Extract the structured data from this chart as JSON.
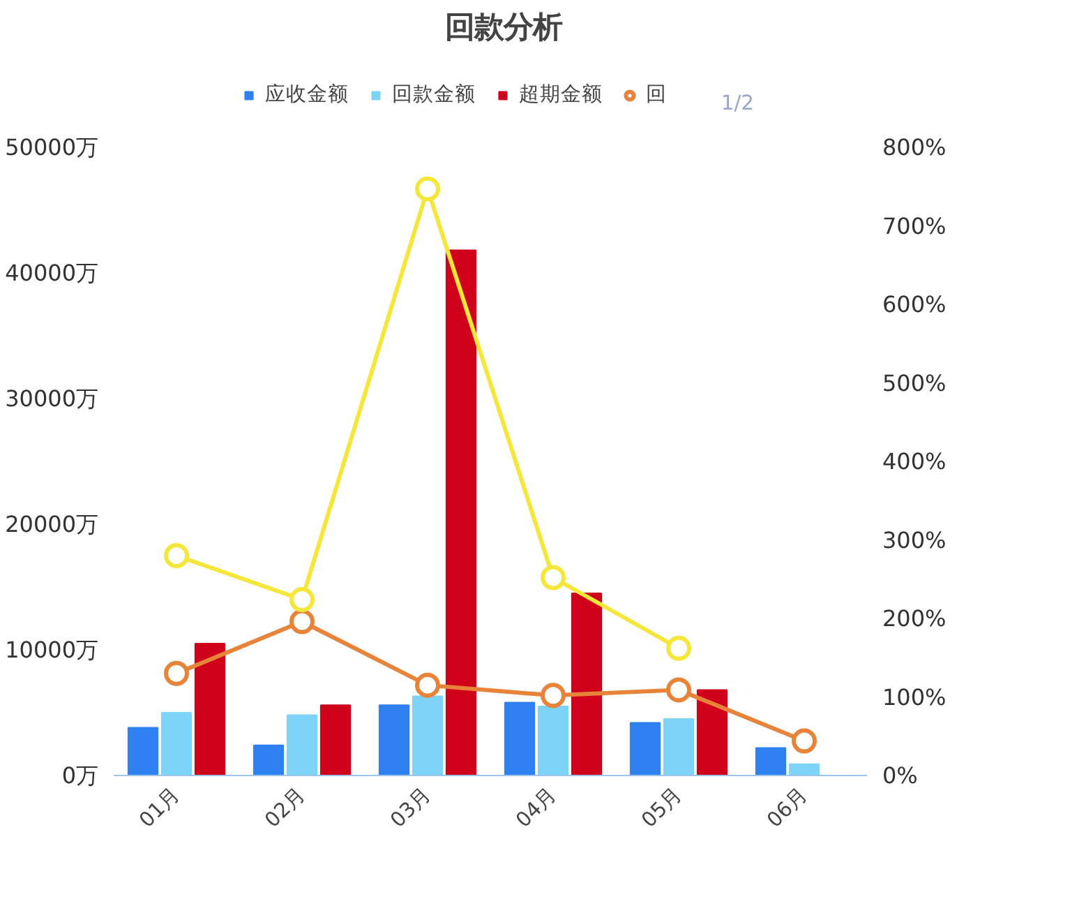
{
  "chart_data": {
    "type": "bar",
    "title": "回款分析",
    "categories": [
      "01月",
      "02月",
      "03月",
      "04月",
      "05月",
      "06月"
    ],
    "series": [
      {
        "name": "应收金额",
        "color": "#2f80f0",
        "values": [
          3800,
          2400,
          5600,
          5800,
          4200,
          2200
        ]
      },
      {
        "name": "回款金额",
        "color": "#7dd3f8",
        "values": [
          5000,
          4800,
          6300,
          5500,
          4500,
          900
        ]
      },
      {
        "name": "超期金额",
        "color": "#d0021b",
        "values": [
          10500,
          5600,
          41800,
          14500,
          6800,
          null
        ]
      },
      {
        "name": "回",
        "type": "line",
        "axis": "y2",
        "color": "#e8833a",
        "values": [
          130,
          196,
          115,
          102,
          109,
          44
        ]
      },
      {
        "type": "line",
        "axis": "y2",
        "color": "#f5e63a",
        "values": [
          280,
          224,
          747,
          252,
          162,
          null
        ]
      }
    ],
    "ylim": [
      0,
      50000
    ],
    "yticks": [
      {
        "value": 0,
        "label": "0万"
      },
      {
        "value": 10000,
        "label": "10000万"
      },
      {
        "value": 20000,
        "label": "20000万"
      },
      {
        "value": 30000,
        "label": "30000万"
      },
      {
        "value": 40000,
        "label": "40000万"
      },
      {
        "value": 50000,
        "label": "50000万"
      }
    ],
    "y2lim": [
      0,
      800
    ],
    "y2ticks": [
      {
        "value": 0,
        "label": "0%"
      },
      {
        "value": 100,
        "label": "100%"
      },
      {
        "value": 200,
        "label": "200%"
      },
      {
        "value": 300,
        "label": "300%"
      },
      {
        "value": 400,
        "label": "400%"
      },
      {
        "value": 500,
        "label": "500%"
      },
      {
        "value": 600,
        "label": "600%"
      },
      {
        "value": 700,
        "label": "700%"
      },
      {
        "value": 800,
        "label": "800%"
      }
    ],
    "marker": "circle",
    "line_style": "solid",
    "grid": false,
    "legend": "top",
    "annotations": [
      "1/2"
    ]
  }
}
